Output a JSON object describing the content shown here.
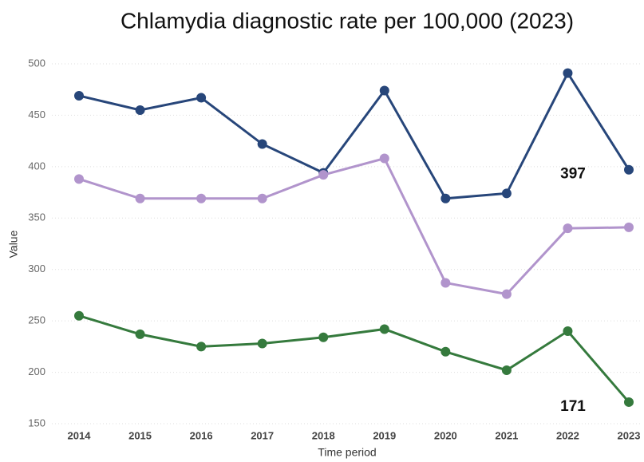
{
  "chart_data": {
    "type": "line",
    "title": "Chlamydia diagnostic rate per 100,000 (2023)",
    "x_label": "Time period",
    "y_label": "Value",
    "categories": [
      "2014",
      "2015",
      "2016",
      "2017",
      "2018",
      "2019",
      "2020",
      "2021",
      "2022",
      "2023"
    ],
    "series": [
      {
        "color": "#27467a",
        "values": [
          469,
          455,
          467,
          422,
          394,
          474,
          369,
          374,
          491,
          397
        ],
        "show_last_label": true
      },
      {
        "color": "#b194cc",
        "values": [
          388,
          369,
          369,
          369,
          392,
          408,
          287,
          276,
          340,
          341
        ],
        "show_last_label": false
      },
      {
        "color": "#357a3d",
        "values": [
          255,
          237,
          225,
          228,
          234,
          242,
          220,
          202,
          240,
          171
        ],
        "show_last_label": true
      }
    ],
    "ylim": [
      150,
      500
    ],
    "yticks": [
      150,
      200,
      250,
      300,
      350,
      400,
      450,
      500
    ],
    "grid": true
  }
}
